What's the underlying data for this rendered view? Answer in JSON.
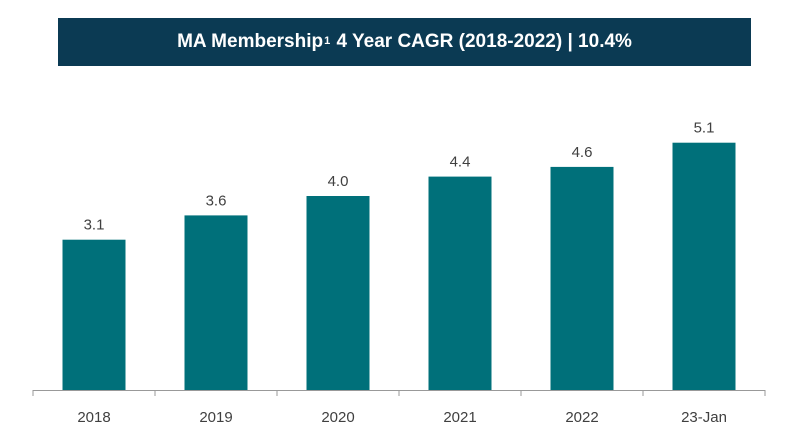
{
  "chart": {
    "title_main": "MA Membership",
    "title_sup": "1",
    "title_rest": " 4 Year CAGR (2018-2022) | 10.4%"
  },
  "colors": {
    "banner": "#0b3a53",
    "bar": "#00707a",
    "text": "#404040"
  },
  "chart_data": {
    "type": "bar",
    "title": "MA Membership1 4 Year CAGR (2018-2022) | 10.4%",
    "categories": [
      "2018",
      "2019",
      "2020",
      "2021",
      "2022",
      "23-Jan"
    ],
    "values": [
      3.1,
      3.6,
      4.0,
      4.4,
      4.6,
      5.1
    ],
    "value_labels": [
      "3.1",
      "3.6",
      "4.0",
      "4.4",
      "4.6",
      "5.1"
    ],
    "xlabel": "",
    "ylabel": "",
    "grid": false,
    "legend": "none"
  }
}
